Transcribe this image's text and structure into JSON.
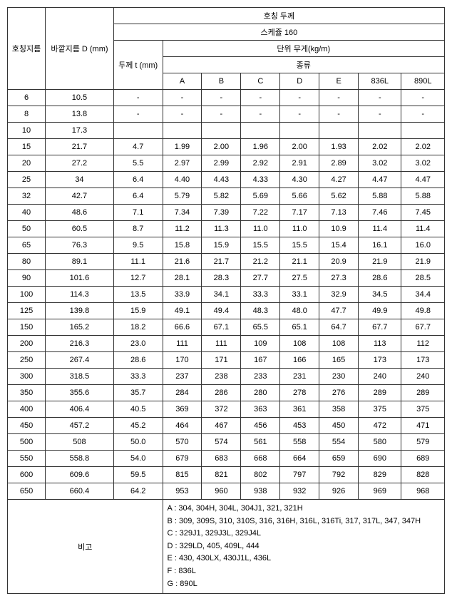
{
  "headers": {
    "nominal_dia": "호칭지름",
    "outer_dia": "바깥지름 D (mm)",
    "nominal_thick": "호칭 두께",
    "schedule": "스케쥴 160",
    "thick_t": "두께 t (mm)",
    "unit_weight": "단위 무게(kg/m)",
    "kind": "종류",
    "cols": [
      "A",
      "B",
      "C",
      "D",
      "E",
      "836L",
      "890L"
    ]
  },
  "rows": [
    {
      "nd": "6",
      "od": "10.5",
      "t": "-",
      "v": [
        "-",
        "-",
        "-",
        "-",
        "-",
        "-",
        "-"
      ]
    },
    {
      "nd": "8",
      "od": "13.8",
      "t": "-",
      "v": [
        "-",
        "-",
        "-",
        "-",
        "-",
        "-",
        "-"
      ]
    },
    {
      "nd": "10",
      "od": "17.3",
      "t": "",
      "v": [
        "",
        "",
        "",
        "",
        "",
        "",
        ""
      ]
    },
    {
      "nd": "15",
      "od": "21.7",
      "t": "4.7",
      "v": [
        "1.99",
        "2.00",
        "1.96",
        "2.00",
        "1.93",
        "2.02",
        "2.02"
      ]
    },
    {
      "nd": "20",
      "od": "27.2",
      "t": "5.5",
      "v": [
        "2.97",
        "2.99",
        "2.92",
        "2.91",
        "2.89",
        "3.02",
        "3.02"
      ]
    },
    {
      "nd": "25",
      "od": "34",
      "t": "6.4",
      "v": [
        "4.40",
        "4.43",
        "4.33",
        "4.30",
        "4.27",
        "4.47",
        "4.47"
      ]
    },
    {
      "nd": "32",
      "od": "42.7",
      "t": "6.4",
      "v": [
        "5.79",
        "5.82",
        "5.69",
        "5.66",
        "5.62",
        "5.88",
        "5.88"
      ]
    },
    {
      "nd": "40",
      "od": "48.6",
      "t": "7.1",
      "v": [
        "7.34",
        "7.39",
        "7.22",
        "7.17",
        "7.13",
        "7.46",
        "7.45"
      ]
    },
    {
      "nd": "50",
      "od": "60.5",
      "t": "8.7",
      "v": [
        "11.2",
        "11.3",
        "11.0",
        "11.0",
        "10.9",
        "11.4",
        "11.4"
      ]
    },
    {
      "nd": "65",
      "od": "76.3",
      "t": "9.5",
      "v": [
        "15.8",
        "15.9",
        "15.5",
        "15.5",
        "15.4",
        "16.1",
        "16.0"
      ]
    },
    {
      "nd": "80",
      "od": "89.1",
      "t": "11.1",
      "v": [
        "21.6",
        "21.7",
        "21.2",
        "21.1",
        "20.9",
        "21.9",
        "21.9"
      ]
    },
    {
      "nd": "90",
      "od": "101.6",
      "t": "12.7",
      "v": [
        "28.1",
        "28.3",
        "27.7",
        "27.5",
        "27.3",
        "28.6",
        "28.5"
      ]
    },
    {
      "nd": "100",
      "od": "114.3",
      "t": "13.5",
      "v": [
        "33.9",
        "34.1",
        "33.3",
        "33.1",
        "32.9",
        "34.5",
        "34.4"
      ]
    },
    {
      "nd": "125",
      "od": "139.8",
      "t": "15.9",
      "v": [
        "49.1",
        "49.4",
        "48.3",
        "48.0",
        "47.7",
        "49.9",
        "49.8"
      ]
    },
    {
      "nd": "150",
      "od": "165.2",
      "t": "18.2",
      "v": [
        "66.6",
        "67.1",
        "65.5",
        "65.1",
        "64.7",
        "67.7",
        "67.7"
      ]
    },
    {
      "nd": "200",
      "od": "216.3",
      "t": "23.0",
      "v": [
        "111",
        "111",
        "109",
        "108",
        "108",
        "113",
        "112"
      ]
    },
    {
      "nd": "250",
      "od": "267.4",
      "t": "28.6",
      "v": [
        "170",
        "171",
        "167",
        "166",
        "165",
        "173",
        "173"
      ]
    },
    {
      "nd": "300",
      "od": "318.5",
      "t": "33.3",
      "v": [
        "237",
        "238",
        "233",
        "231",
        "230",
        "240",
        "240"
      ]
    },
    {
      "nd": "350",
      "od": "355.6",
      "t": "35.7",
      "v": [
        "284",
        "286",
        "280",
        "278",
        "276",
        "289",
        "289"
      ]
    },
    {
      "nd": "400",
      "od": "406.4",
      "t": "40.5",
      "v": [
        "369",
        "372",
        "363",
        "361",
        "358",
        "375",
        "375"
      ]
    },
    {
      "nd": "450",
      "od": "457.2",
      "t": "45.2",
      "v": [
        "464",
        "467",
        "456",
        "453",
        "450",
        "472",
        "471"
      ]
    },
    {
      "nd": "500",
      "od": "508",
      "t": "50.0",
      "v": [
        "570",
        "574",
        "561",
        "558",
        "554",
        "580",
        "579"
      ]
    },
    {
      "nd": "550",
      "od": "558.8",
      "t": "54.0",
      "v": [
        "679",
        "683",
        "668",
        "664",
        "659",
        "690",
        "689"
      ]
    },
    {
      "nd": "600",
      "od": "609.6",
      "t": "59.5",
      "v": [
        "815",
        "821",
        "802",
        "797",
        "792",
        "829",
        "828"
      ]
    },
    {
      "nd": "650",
      "od": "660.4",
      "t": "64.2",
      "v": [
        "953",
        "960",
        "938",
        "932",
        "926",
        "969",
        "968"
      ]
    }
  ],
  "notes": {
    "label": "비고",
    "lines": [
      "A : 304, 304H, 304L, 304J1, 321, 321H",
      "B : 309, 309S, 310, 310S, 316, 316H, 316L, 316Ti, 317, 317L, 347, 347H",
      "C : 329J1, 329J3L, 329J4L",
      "D : 329LD, 405, 409L, 444",
      "E : 430, 430LX, 430J1L, 436L",
      "F : 836L",
      "G : 890L"
    ]
  }
}
